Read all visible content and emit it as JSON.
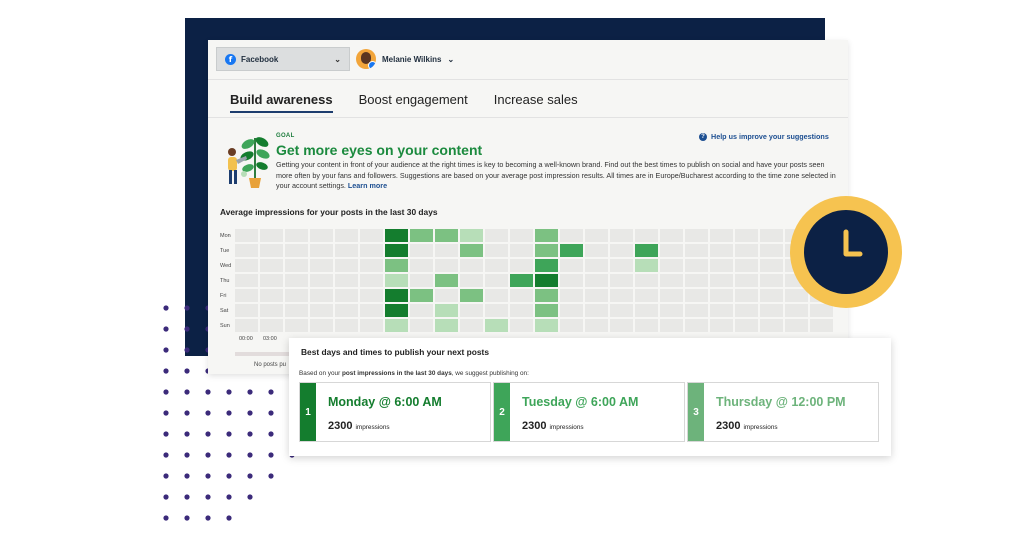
{
  "account_selector": {
    "network": "Facebook",
    "icon": "facebook-icon"
  },
  "user": {
    "name": "Melanie Wilkins"
  },
  "tabs": [
    {
      "label": "Build awareness",
      "active": true
    },
    {
      "label": "Boost engagement",
      "active": false
    },
    {
      "label": "Increase sales",
      "active": false
    }
  ],
  "goal": {
    "label": "GOAL",
    "title": "Get more eyes on your content",
    "description": "Getting your content in front of your audience at the right times is key to becoming a well-known brand. Find out the best times to publish on social and have your posts seen more often by your fans and followers. Suggestions are based on your average post impression results. All times are in Europe/Bucharest according to the time zone selected in your account settings.",
    "learn_more": "Learn more",
    "help_link": "Help us improve your suggestions"
  },
  "heatmap": {
    "title": "Average impressions for your posts in the last 30 days",
    "days": [
      "Mon",
      "Tue",
      "Wed",
      "Thu",
      "Fri",
      "Sat",
      "Sun"
    ],
    "time_labels": [
      "00:00",
      "03:00"
    ],
    "no_posts_text": "No posts pu",
    "levels": [
      [
        0,
        0,
        0,
        0,
        0,
        0,
        4,
        2,
        2,
        1,
        0,
        0,
        2,
        0,
        0,
        0,
        0,
        0,
        0,
        0,
        0,
        0,
        0,
        0
      ],
      [
        0,
        0,
        0,
        0,
        0,
        0,
        4,
        0,
        0,
        2,
        0,
        0,
        2,
        3,
        0,
        0,
        3,
        0,
        0,
        0,
        0,
        0,
        0,
        0
      ],
      [
        0,
        0,
        0,
        0,
        0,
        0,
        2,
        0,
        0,
        0,
        0,
        0,
        3,
        0,
        0,
        0,
        1,
        0,
        0,
        0,
        0,
        0,
        0,
        0
      ],
      [
        0,
        0,
        0,
        0,
        0,
        0,
        1,
        0,
        2,
        0,
        0,
        3,
        4,
        0,
        0,
        0,
        0,
        0,
        0,
        0,
        0,
        0,
        0,
        0
      ],
      [
        0,
        0,
        0,
        0,
        0,
        0,
        4,
        2,
        0,
        2,
        0,
        0,
        2,
        0,
        0,
        0,
        0,
        0,
        0,
        0,
        0,
        0,
        0,
        0
      ],
      [
        0,
        0,
        0,
        0,
        0,
        0,
        4,
        0,
        1,
        0,
        0,
        0,
        2,
        0,
        0,
        0,
        0,
        0,
        0,
        0,
        0,
        0,
        0,
        0
      ],
      [
        0,
        0,
        0,
        0,
        0,
        0,
        1,
        0,
        1,
        0,
        1,
        0,
        1,
        0,
        0,
        0,
        0,
        0,
        0,
        0,
        0,
        0,
        0,
        0
      ]
    ]
  },
  "best_times": {
    "title": "Best days and times to publish your next posts",
    "subtitle_prefix": "Based on your ",
    "subtitle_bold": "post impressions in the last 30 days",
    "subtitle_suffix": ", we suggest publishing on:",
    "slots": [
      {
        "rank": "1",
        "when": "Monday  @ 6:00 AM",
        "impressions": "2300",
        "impressions_label": "impressions",
        "color": "#147d2e"
      },
      {
        "rank": "2",
        "when": "Tuesday  @ 6:00 AM",
        "impressions": "2300",
        "impressions_label": "impressions",
        "color": "#3ea559"
      },
      {
        "rank": "3",
        "when": "Thursday  @ 12:00 PM",
        "impressions": "2300",
        "impressions_label": "impressions",
        "color": "#6db37b"
      }
    ]
  },
  "colors": {
    "navy": "#0c2145",
    "green_dark": "#147d2e",
    "green_title": "#1b8a3e",
    "link_blue": "#1d4f91",
    "clock_yellow": "#f6c350",
    "dots_purple": "#3b2a7a"
  }
}
